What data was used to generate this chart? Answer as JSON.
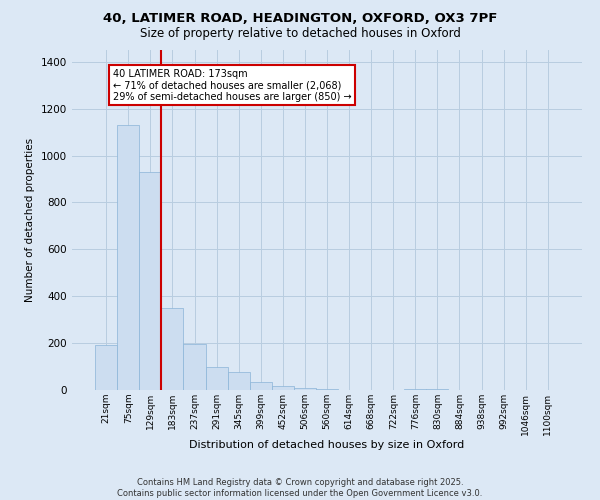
{
  "title_line1": "40, LATIMER ROAD, HEADINGTON, OXFORD, OX3 7PF",
  "title_line2": "Size of property relative to detached houses in Oxford",
  "xlabel": "Distribution of detached houses by size in Oxford",
  "ylabel": "Number of detached properties",
  "categories": [
    "21sqm",
    "75sqm",
    "129sqm",
    "183sqm",
    "237sqm",
    "291sqm",
    "345sqm",
    "399sqm",
    "452sqm",
    "506sqm",
    "560sqm",
    "614sqm",
    "668sqm",
    "722sqm",
    "776sqm",
    "830sqm",
    "884sqm",
    "938sqm",
    "992sqm",
    "1046sqm",
    "1100sqm"
  ],
  "values": [
    190,
    1130,
    930,
    350,
    195,
    100,
    75,
    35,
    15,
    10,
    5,
    0,
    0,
    0,
    5,
    5,
    0,
    0,
    0,
    0,
    0
  ],
  "bar_color": "#ccddf0",
  "bar_edge_color": "#8ab4d8",
  "grid_color": "#b8cde0",
  "background_color": "#dce8f5",
  "vline_color": "#cc0000",
  "annotation_text": "40 LATIMER ROAD: 173sqm\n← 71% of detached houses are smaller (2,068)\n29% of semi-detached houses are larger (850) →",
  "annotation_box_color": "#cc0000",
  "footer_line1": "Contains HM Land Registry data © Crown copyright and database right 2025.",
  "footer_line2": "Contains public sector information licensed under the Open Government Licence v3.0.",
  "ylim": [
    0,
    1450
  ],
  "yticks": [
    0,
    200,
    400,
    600,
    800,
    1000,
    1200,
    1400
  ]
}
